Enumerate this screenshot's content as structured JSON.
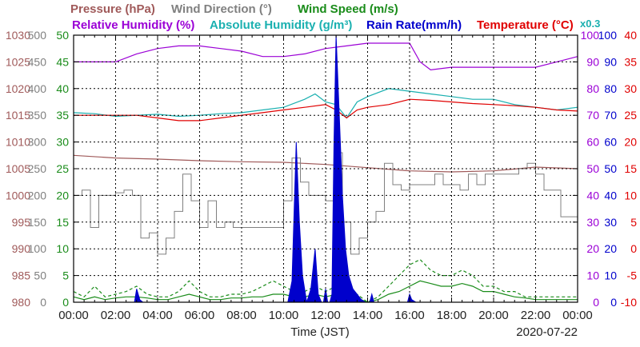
{
  "chart_data": {
    "type": "line",
    "date_label": "2020-07-22",
    "xlabel": "Time (JST)",
    "x_ticks": [
      "00:00",
      "02:00",
      "04:00",
      "06:00",
      "08:00",
      "10:00",
      "12:00",
      "14:00",
      "16:00",
      "18:00",
      "20:00",
      "22:00",
      "00:00"
    ],
    "x_range_hours": [
      0,
      24
    ],
    "grid": true,
    "legend_row1": [
      {
        "label": "Pressure (hPa)",
        "color": "#a05a5a"
      },
      {
        "label": "Wind Direction (°)",
        "color": "#808080"
      },
      {
        "label": "Wind Speed (m/s)",
        "color": "#1a8c1a"
      }
    ],
    "legend_row2": [
      {
        "label": "Relative Humidity (%)",
        "color": "#9b00d6"
      },
      {
        "label": "Absolute Humidity (g/m³)",
        "color": "#1ab0b0"
      },
      {
        "label": "Rain Rate(mm/h)",
        "color": "#0000cc"
      },
      {
        "label": "Temperature (°C)",
        "color": "#e00000"
      }
    ],
    "rain_scale_note": "x0.3",
    "axes": [
      {
        "id": "pressure",
        "unit": "hPa",
        "range": [
          980,
          1030
        ],
        "ticks": [
          "1030",
          "1025",
          "1020",
          "1015",
          "1010",
          "1005",
          "1000",
          "995",
          "990",
          "985",
          "980"
        ],
        "color": "#a05a5a",
        "side": "left"
      },
      {
        "id": "wind_direction",
        "unit": "°",
        "range": [
          0,
          500
        ],
        "ticks": [
          "500",
          "450",
          "400",
          "350",
          "300",
          "250",
          "200",
          "150",
          "100",
          "50",
          "0"
        ],
        "color": "#808080",
        "side": "left"
      },
      {
        "id": "wind_speed",
        "unit": "m/s",
        "range": [
          0,
          50
        ],
        "ticks": [
          "50",
          "45",
          "40",
          "35",
          "30",
          "25",
          "20",
          "15",
          "10",
          "5",
          "0"
        ],
        "color": "#1a8c1a",
        "side": "left"
      },
      {
        "id": "humidity",
        "unit": "%",
        "range": [
          0,
          100
        ],
        "ticks": [
          "100",
          "90",
          "80",
          "70",
          "60",
          "50",
          "40",
          "30",
          "20",
          "10",
          "0"
        ],
        "color": "#9b00d6",
        "side": "right"
      },
      {
        "id": "rain",
        "unit": "mm/h",
        "range": [
          0,
          100
        ],
        "ticks": [
          "100",
          "90",
          "80",
          "70",
          "60",
          "50",
          "40",
          "30",
          "20",
          "10",
          "0"
        ],
        "color": "#0000cc",
        "side": "right"
      },
      {
        "id": "temperature",
        "unit": "°C",
        "range": [
          -10,
          40
        ],
        "ticks": [
          "40",
          "35",
          "30",
          "25",
          "20",
          "15",
          "10",
          "5",
          "0",
          "-5",
          "-10"
        ],
        "color": "#e00000",
        "side": "right"
      }
    ],
    "series": [
      {
        "name": "Relative Humidity (%)",
        "axis": "humidity",
        "color": "#9b00d6",
        "style": "line",
        "x": [
          0,
          1,
          2,
          3,
          4,
          5,
          6,
          7,
          8,
          9,
          10,
          11,
          12,
          13,
          14,
          15,
          16,
          16.5,
          17,
          18,
          19,
          20,
          21,
          22,
          23,
          24
        ],
        "y": [
          90,
          90,
          90,
          93,
          95,
          96,
          96,
          95,
          94,
          92,
          92,
          93,
          95,
          96,
          97,
          97,
          97,
          90,
          87,
          88,
          88,
          88,
          88,
          88,
          90,
          92
        ]
      },
      {
        "name": "Absolute Humidity (g/m³)",
        "axis": "wind_speed",
        "color": "#1ab0b0",
        "style": "line",
        "x": [
          0,
          1,
          2,
          3,
          4,
          5,
          6,
          7,
          8,
          9,
          10,
          11,
          11.5,
          12,
          12.5,
          13,
          13.5,
          14,
          15,
          16,
          17,
          18,
          19,
          20,
          21,
          22,
          23,
          24
        ],
        "y": [
          35.5,
          35.3,
          34.8,
          35,
          35.2,
          34.8,
          35,
          35.3,
          35.5,
          36,
          36.5,
          38,
          39,
          37.5,
          37,
          34.5,
          37.5,
          38.5,
          40,
          39.5,
          39,
          38.5,
          38,
          38,
          37,
          36.5,
          36,
          36.5
        ]
      },
      {
        "name": "Temperature (°C)",
        "axis": "temperature",
        "color": "#e00000",
        "style": "line",
        "x": [
          0,
          1,
          2,
          3,
          4,
          5,
          6,
          7,
          8,
          9,
          10,
          11,
          12,
          12.5,
          13,
          13.5,
          14,
          15,
          16,
          17,
          18,
          19,
          20,
          21,
          22,
          23,
          24
        ],
        "y": [
          25,
          25,
          25,
          25,
          24.5,
          24,
          24,
          24.5,
          25,
          25.5,
          26,
          26.5,
          27,
          26,
          24.5,
          26,
          26.5,
          27,
          28,
          27.8,
          27.5,
          27.2,
          27,
          26.8,
          26.5,
          26,
          25.8
        ]
      },
      {
        "name": "Pressure (hPa)",
        "axis": "pressure",
        "color": "#a05a5a",
        "style": "line",
        "x": [
          0,
          2,
          4,
          6,
          8,
          10,
          12,
          14,
          16,
          18,
          20,
          22,
          24
        ],
        "y": [
          1007.5,
          1007,
          1006.8,
          1006.5,
          1006.3,
          1006.2,
          1005.8,
          1005.2,
          1004.6,
          1004.4,
          1004.6,
          1005.3,
          1005
        ]
      },
      {
        "name": "Wind Direction (°)",
        "axis": "wind_direction",
        "color": "#808080",
        "style": "step",
        "x": [
          0,
          0.4,
          0.8,
          1.2,
          1.6,
          2,
          2.4,
          2.8,
          3.2,
          3.6,
          4,
          4.4,
          4.8,
          5.2,
          5.6,
          6,
          6.4,
          6.8,
          7.2,
          7.6,
          8,
          8.4,
          8.8,
          9.2,
          9.6,
          10,
          10.4,
          10.8,
          11.2,
          11.6,
          12,
          12.4,
          12.8,
          13.2,
          13.6,
          14,
          14.4,
          14.8,
          15.2,
          15.6,
          16,
          16.4,
          16.8,
          17.2,
          17.6,
          18,
          18.4,
          18.8,
          19.2,
          19.6,
          20,
          20.4,
          20.8,
          21.2,
          21.6,
          22,
          22.4,
          22.8,
          23.2,
          23.6,
          24
        ],
        "y": [
          200,
          210,
          140,
          200,
          200,
          205,
          210,
          200,
          120,
          130,
          90,
          120,
          170,
          240,
          190,
          140,
          190,
          140,
          150,
          140,
          140,
          140,
          140,
          140,
          140,
          190,
          270,
          225,
          200,
          200,
          190,
          280,
          150,
          90,
          120,
          150,
          170,
          260,
          220,
          210,
          220,
          220,
          220,
          240,
          220,
          220,
          210,
          240,
          220,
          240,
          240,
          240,
          240,
          250,
          260,
          240,
          210,
          210,
          160,
          160,
          160
        ]
      },
      {
        "name": "Wind Speed (m/s) gust",
        "axis": "wind_speed",
        "color": "#1a8c1a",
        "style": "dashed",
        "x": [
          0,
          0.5,
          1,
          1.5,
          2,
          2.5,
          3,
          3.5,
          4,
          4.5,
          5,
          5.5,
          6,
          6.5,
          7,
          7.5,
          8,
          8.5,
          9,
          9.5,
          10,
          10.5,
          11,
          11.5,
          12,
          12.5,
          13,
          13.5,
          14,
          14.5,
          15,
          15.5,
          16,
          16.5,
          17,
          17.5,
          18,
          18.5,
          19,
          19.5,
          20,
          20.5,
          21,
          21.5,
          22,
          22.5,
          23,
          23.5,
          24
        ],
        "y": [
          2,
          1,
          3,
          1,
          1.5,
          2,
          3,
          1.5,
          1,
          1,
          2,
          4,
          2,
          1,
          1,
          1.5,
          1.5,
          2,
          3,
          4,
          3,
          2,
          2,
          3,
          2,
          3,
          2,
          1.5,
          0,
          1,
          3,
          5,
          7,
          8,
          6,
          5,
          5,
          6,
          5,
          3,
          3,
          2,
          2,
          1,
          1,
          1,
          1,
          1,
          1
        ]
      },
      {
        "name": "Wind Speed (m/s)",
        "axis": "wind_speed",
        "color": "#1a8c1a",
        "style": "line",
        "x": [
          0,
          0.5,
          1,
          1.5,
          2,
          2.5,
          3,
          3.5,
          4,
          4.5,
          5,
          5.5,
          6,
          6.5,
          7,
          7.5,
          8,
          8.5,
          9,
          9.5,
          10,
          10.5,
          11,
          11.5,
          12,
          12.5,
          13,
          13.5,
          14,
          14.5,
          15,
          15.5,
          16,
          16.5,
          17,
          17.5,
          18,
          18.5,
          19,
          19.5,
          20,
          20.5,
          21,
          21.5,
          22,
          22.5,
          23,
          23.5,
          24
        ],
        "y": [
          1,
          0.5,
          1,
          0.5,
          0.8,
          1,
          1,
          0.8,
          0.5,
          0.5,
          1,
          1.5,
          1,
          0.5,
          0.5,
          0.8,
          0.8,
          1,
          1,
          1.5,
          1.5,
          1,
          1,
          1.5,
          1,
          1.5,
          1,
          0.8,
          0,
          0.5,
          1.5,
          2,
          3,
          4,
          3.5,
          3,
          3,
          3.5,
          3,
          2,
          2,
          1.5,
          1,
          0.8,
          0.5,
          0.5,
          0.5,
          0.5,
          0.5
        ]
      },
      {
        "name": "Rain Rate(mm/h)",
        "axis": "rain",
        "color": "#0000cc",
        "style": "area",
        "x": [
          0,
          2.9,
          3.0,
          3.15,
          3.3,
          10.2,
          10.4,
          10.6,
          10.75,
          10.9,
          11.1,
          11.3,
          11.5,
          11.65,
          11.8,
          11.9,
          12.0,
          12.1,
          12.2,
          12.3,
          12.4,
          12.5,
          12.65,
          12.8,
          12.95,
          13.1,
          13.3,
          13.5,
          13.7,
          13.9,
          14.1,
          14.2,
          14.3,
          14.5,
          14.6,
          15.9,
          16.0,
          16.1,
          16.3,
          24
        ],
        "y": [
          0,
          0,
          5,
          1,
          0,
          0,
          8,
          60,
          30,
          10,
          0,
          5,
          20,
          3,
          0,
          0,
          5,
          0,
          0,
          3,
          60,
          100,
          70,
          40,
          20,
          10,
          5,
          3,
          1,
          0,
          0,
          3,
          0,
          0,
          0,
          0,
          3,
          1,
          0,
          0
        ]
      }
    ]
  }
}
